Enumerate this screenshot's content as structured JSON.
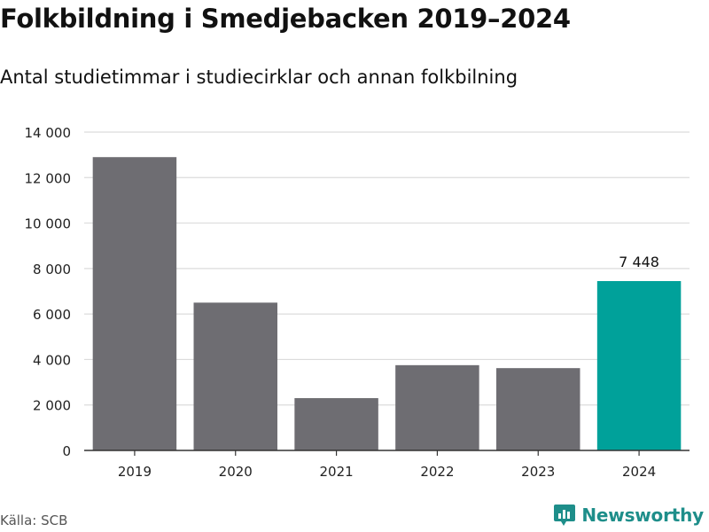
{
  "header": {
    "title": "Folkbildning i Smedjebacken 2019–2024",
    "subtitle": "Antal studietimmar i studiecirklar och annan folkbilning"
  },
  "footer": {
    "source": "Källa: SCB",
    "brand": "Newsworthy"
  },
  "colors": {
    "bar": "#6e6d72",
    "highlight": "#00a19a",
    "grid": "#dcdcdc",
    "axis": "#333333",
    "brand": "#1e8e8a"
  },
  "chart_data": {
    "type": "bar",
    "categories": [
      "2019",
      "2020",
      "2021",
      "2022",
      "2023",
      "2024"
    ],
    "values": [
      12900,
      6500,
      2300,
      3750,
      3620,
      7448
    ],
    "highlight_index": 5,
    "data_labels": [
      {
        "index": 5,
        "text": "7 448"
      }
    ],
    "ylim": [
      0,
      14000
    ],
    "yticks": [
      0,
      2000,
      4000,
      6000,
      8000,
      10000,
      12000,
      14000
    ],
    "ytick_labels": [
      "0",
      "2 000",
      "4 000",
      "6 000",
      "8 000",
      "10 000",
      "12 000",
      "14 000"
    ],
    "grid": true,
    "xlabel": "",
    "ylabel": ""
  }
}
